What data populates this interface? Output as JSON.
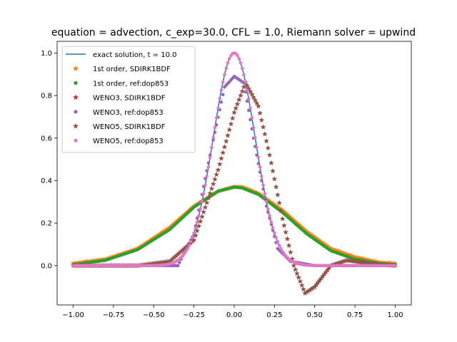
{
  "chart_data": {
    "type": "line",
    "title": "equation = advection, c_exp=30.0, CFL = 1.0, Riemann solver = upwind",
    "xlabel": "",
    "ylabel": "",
    "xlim": [
      -1.1,
      1.1
    ],
    "ylim": [
      -0.185,
      1.055
    ],
    "x_ticks": [
      -1.0,
      -0.75,
      -0.5,
      -0.25,
      0.0,
      0.25,
      0.5,
      0.75,
      1.0
    ],
    "x_tick_labels": [
      "−1.00",
      "−0.75",
      "−0.50",
      "−0.25",
      "0.00",
      "0.25",
      "0.50",
      "0.75",
      "1.00"
    ],
    "y_ticks": [
      0.0,
      0.2,
      0.4,
      0.6,
      0.8,
      1.0
    ],
    "y_tick_labels": [
      "0.0",
      "0.2",
      "0.4",
      "0.6",
      "0.8",
      "1.0"
    ],
    "grid": false,
    "legend_position": "top-left",
    "series": [
      {
        "name": "exact solution, t = 10.0",
        "marker": "line",
        "color": "#1f77b4",
        "formula": "exp(-30 x^2)",
        "x_range": [
          -1.0,
          1.0
        ]
      },
      {
        "name": "1st order, SDIRK1BDF",
        "marker": "star",
        "color": "#ff7f0e",
        "curve": [
          [
            -1.0,
            0.01
          ],
          [
            -0.8,
            0.03
          ],
          [
            -0.6,
            0.08
          ],
          [
            -0.4,
            0.18
          ],
          [
            -0.25,
            0.28
          ],
          [
            -0.1,
            0.35
          ],
          [
            0.0,
            0.37
          ],
          [
            0.05,
            0.37
          ],
          [
            0.15,
            0.34
          ],
          [
            0.3,
            0.26
          ],
          [
            0.45,
            0.16
          ],
          [
            0.6,
            0.08
          ],
          [
            0.75,
            0.04
          ],
          [
            0.9,
            0.015
          ],
          [
            1.0,
            0.01
          ]
        ]
      },
      {
        "name": "1st order, ref:dop853",
        "marker": "circle",
        "color": "#2ca02c",
        "curve": [
          [
            -1.0,
            0.005
          ],
          [
            -0.8,
            0.025
          ],
          [
            -0.6,
            0.075
          ],
          [
            -0.4,
            0.17
          ],
          [
            -0.25,
            0.275
          ],
          [
            -0.1,
            0.35
          ],
          [
            0.0,
            0.37
          ],
          [
            0.05,
            0.365
          ],
          [
            0.15,
            0.335
          ],
          [
            0.3,
            0.25
          ],
          [
            0.45,
            0.15
          ],
          [
            0.6,
            0.07
          ],
          [
            0.75,
            0.03
          ],
          [
            0.9,
            0.01
          ],
          [
            1.0,
            0.005
          ]
        ]
      },
      {
        "name": "WENO3, SDIRK1BDF",
        "marker": "star",
        "color": "#d62728",
        "curve": [
          [
            -1.0,
            0.0
          ],
          [
            -0.6,
            0.0
          ],
          [
            -0.4,
            0.02
          ],
          [
            -0.25,
            0.12
          ],
          [
            -0.1,
            0.45
          ],
          [
            0.0,
            0.72
          ],
          [
            0.07,
            0.86
          ],
          [
            0.15,
            0.75
          ],
          [
            0.22,
            0.52
          ],
          [
            0.3,
            0.22
          ],
          [
            0.37,
            0.0
          ],
          [
            0.44,
            -0.13
          ],
          [
            0.5,
            -0.1
          ],
          [
            0.6,
            0.0
          ],
          [
            0.7,
            0.025
          ],
          [
            0.8,
            0.015
          ],
          [
            0.9,
            0.005
          ],
          [
            1.0,
            0.0
          ]
        ]
      },
      {
        "name": "WENO3, ref:dop853",
        "marker": "circle",
        "color": "#9467bd",
        "curve": [
          [
            -1.0,
            0.0
          ],
          [
            -0.35,
            0.0
          ],
          [
            -0.25,
            0.15
          ],
          [
            -0.15,
            0.52
          ],
          [
            -0.06,
            0.84
          ],
          [
            0.0,
            0.89
          ],
          [
            0.06,
            0.86
          ],
          [
            0.12,
            0.6
          ],
          [
            0.2,
            0.28
          ],
          [
            0.27,
            0.08
          ],
          [
            0.35,
            0.02
          ],
          [
            0.5,
            0.0
          ],
          [
            1.0,
            0.0
          ]
        ]
      },
      {
        "name": "WENO5, SDIRK1BDF",
        "marker": "star",
        "color": "#8c564b",
        "curve": [
          [
            -1.0,
            0.0
          ],
          [
            -0.6,
            0.0
          ],
          [
            -0.4,
            0.02
          ],
          [
            -0.25,
            0.12
          ],
          [
            -0.1,
            0.45
          ],
          [
            0.0,
            0.72
          ],
          [
            0.07,
            0.86
          ],
          [
            0.15,
            0.75
          ],
          [
            0.22,
            0.52
          ],
          [
            0.3,
            0.22
          ],
          [
            0.37,
            0.0
          ],
          [
            0.44,
            -0.13
          ],
          [
            0.5,
            -0.1
          ],
          [
            0.6,
            0.0
          ],
          [
            0.7,
            0.025
          ],
          [
            0.8,
            0.015
          ],
          [
            0.9,
            0.005
          ],
          [
            1.0,
            0.0
          ]
        ]
      },
      {
        "name": "WENO5, ref:dop853",
        "marker": "circle",
        "color": "#e377c2",
        "formula": "exp(-30 x^2)",
        "x_range": [
          -1.0,
          1.0
        ]
      }
    ]
  }
}
